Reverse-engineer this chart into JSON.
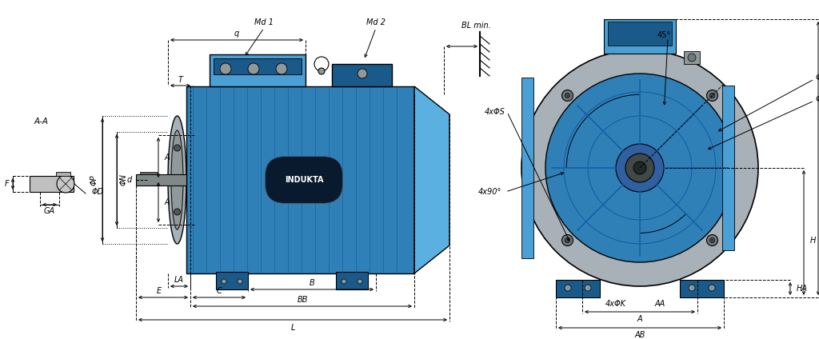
{
  "bg_color": "#ffffff",
  "lc": "#000000",
  "blue_light": "#4a9fd4",
  "blue_mid": "#3080b8",
  "blue_dark": "#1a5a8a",
  "blue_back": "#5ab0e0",
  "gray_flange": "#a8b0b8",
  "gray_dark": "#707880",
  "gray_med": "#909898",
  "shaft_gray": "#808888",
  "fig_width": 10.24,
  "fig_height": 4.24,
  "fs": 7.0,
  "lw": 0.7
}
